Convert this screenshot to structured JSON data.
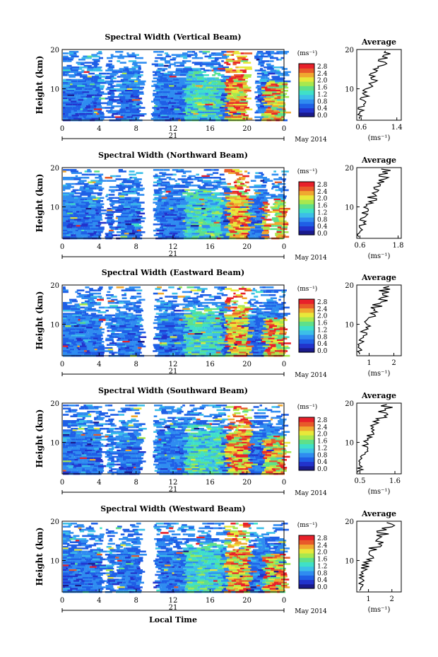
{
  "figure": {
    "date_label": "May 2014",
    "xlabel": "Local Time",
    "ylabel": "Height (km)",
    "unit_label": "(ms⁻¹)",
    "avg_title": "Average"
  },
  "colorscale": {
    "ticks": [
      "2.8",
      "2.4",
      "2.0",
      "1.6",
      "1.2",
      "0.8",
      "0.4",
      "0.0"
    ],
    "stops": [
      "#1a1a8c",
      "#2233cc",
      "#1f5fe6",
      "#2f8cf0",
      "#3cbfe8",
      "#3fe0c8",
      "#5ee08a",
      "#a8e84e",
      "#e8e83a",
      "#f0a830",
      "#e85a2a",
      "#e8202a"
    ]
  },
  "chart_data": [
    {
      "type": "heatmap",
      "title": "Spectral Width (Vertical Beam)",
      "xlabel": "Local Time",
      "ylabel": "Height (km)",
      "x_ticks": [
        "0",
        "4",
        "8",
        "12",
        "16",
        "20",
        "0"
      ],
      "day_label": "21",
      "y_ticks": [
        "10",
        "20"
      ],
      "xlim": [
        0,
        24
      ],
      "ylim": [
        2,
        20
      ],
      "colorbar": {
        "min": 0.0,
        "max": 2.8,
        "unit": "(ms⁻¹)"
      },
      "gaps_hours": [
        [
          4.1,
          4.6
        ],
        [
          5.4,
          5.7
        ],
        [
          8.3,
          9.6
        ],
        [
          19.8,
          20.8
        ]
      ],
      "profile": {
        "title": "Average",
        "x_ticks": [
          "0.6",
          "1.4"
        ],
        "xlim": [
          0.5,
          1.5
        ],
        "y_ticks": [
          "10",
          "20"
        ],
        "ylim": [
          2,
          20
        ],
        "xlabel": "(ms⁻¹)"
      }
    },
    {
      "type": "heatmap",
      "title": "Spectral Width (Northward Beam)",
      "xlabel": "Local Time",
      "ylabel": "Height (km)",
      "x_ticks": [
        "0",
        "4",
        "8",
        "12",
        "16",
        "20",
        "0"
      ],
      "day_label": "21",
      "y_ticks": [
        "10",
        "20"
      ],
      "xlim": [
        0,
        24
      ],
      "ylim": [
        2,
        20
      ],
      "colorbar": {
        "min": 0.0,
        "max": 2.8,
        "unit": "(ms⁻¹)"
      },
      "gaps_hours": [
        [
          4.1,
          4.6
        ],
        [
          5.4,
          5.7
        ],
        [
          8.3,
          9.8
        ],
        [
          22.0,
          22.5
        ]
      ],
      "profile": {
        "title": "Average",
        "x_ticks": [
          "0.6",
          "1.8"
        ],
        "xlim": [
          0.5,
          1.9
        ],
        "y_ticks": [
          "10",
          "20"
        ],
        "ylim": [
          2,
          20
        ],
        "xlabel": "(ms⁻¹)"
      }
    },
    {
      "type": "heatmap",
      "title": "Spectral Width (Eastward Beam)",
      "xlabel": "Local Time",
      "ylabel": "Height (km)",
      "x_ticks": [
        "0",
        "4",
        "8",
        "12",
        "16",
        "20",
        "0"
      ],
      "day_label": "21",
      "y_ticks": [
        "10",
        "20"
      ],
      "xlim": [
        0,
        24
      ],
      "ylim": [
        2,
        20
      ],
      "colorbar": {
        "min": 0.0,
        "max": 2.8,
        "unit": "(ms⁻¹)"
      },
      "gaps_hours": [
        [
          4.1,
          4.6
        ],
        [
          5.4,
          5.7
        ],
        [
          8.3,
          9.8
        ]
      ],
      "profile": {
        "title": "Average",
        "x_ticks": [
          "1",
          "2"
        ],
        "xlim": [
          0.5,
          2.3
        ],
        "y_ticks": [
          "10",
          "20"
        ],
        "ylim": [
          2,
          20
        ],
        "xlabel": "(ms⁻¹)"
      }
    },
    {
      "type": "heatmap",
      "title": "Spectral Width (Southward Beam)",
      "xlabel": "Local Time",
      "ylabel": "Height (km)",
      "x_ticks": [
        "0",
        "4",
        "8",
        "12",
        "16",
        "20",
        "0"
      ],
      "day_label": "21",
      "y_ticks": [
        "10",
        "20"
      ],
      "xlim": [
        0,
        24
      ],
      "ylim": [
        2,
        20
      ],
      "colorbar": {
        "min": 0.0,
        "max": 2.8,
        "unit": "(ms⁻¹)"
      },
      "gaps_hours": [
        [
          4.1,
          4.6
        ],
        [
          5.4,
          5.7
        ],
        [
          8.3,
          9.8
        ]
      ],
      "profile": {
        "title": "Average",
        "x_ticks": [
          "0.5",
          "1.6"
        ],
        "xlim": [
          0.4,
          1.8
        ],
        "y_ticks": [
          "10",
          "20"
        ],
        "ylim": [
          2,
          20
        ],
        "xlabel": "(ms⁻¹)"
      }
    },
    {
      "type": "heatmap",
      "title": "Spectral Width (Westward Beam)",
      "xlabel": "Local Time",
      "ylabel": "Height (km)",
      "x_ticks": [
        "0",
        "4",
        "8",
        "12",
        "16",
        "20",
        "0"
      ],
      "day_label": "21",
      "y_ticks": [
        "10",
        "20"
      ],
      "xlim": [
        0,
        24
      ],
      "ylim": [
        2,
        20
      ],
      "colorbar": {
        "min": 0.0,
        "max": 2.8,
        "unit": "(ms⁻¹)"
      },
      "gaps_hours": [
        [
          4.1,
          4.6
        ],
        [
          5.4,
          5.7
        ],
        [
          8.3,
          9.8
        ]
      ],
      "profile": {
        "title": "Average",
        "x_ticks": [
          "1",
          "2"
        ],
        "xlim": [
          0.5,
          2.4
        ],
        "y_ticks": [
          "10",
          "20"
        ],
        "ylim": [
          2,
          20
        ],
        "xlabel": "(ms⁻¹)"
      }
    }
  ]
}
